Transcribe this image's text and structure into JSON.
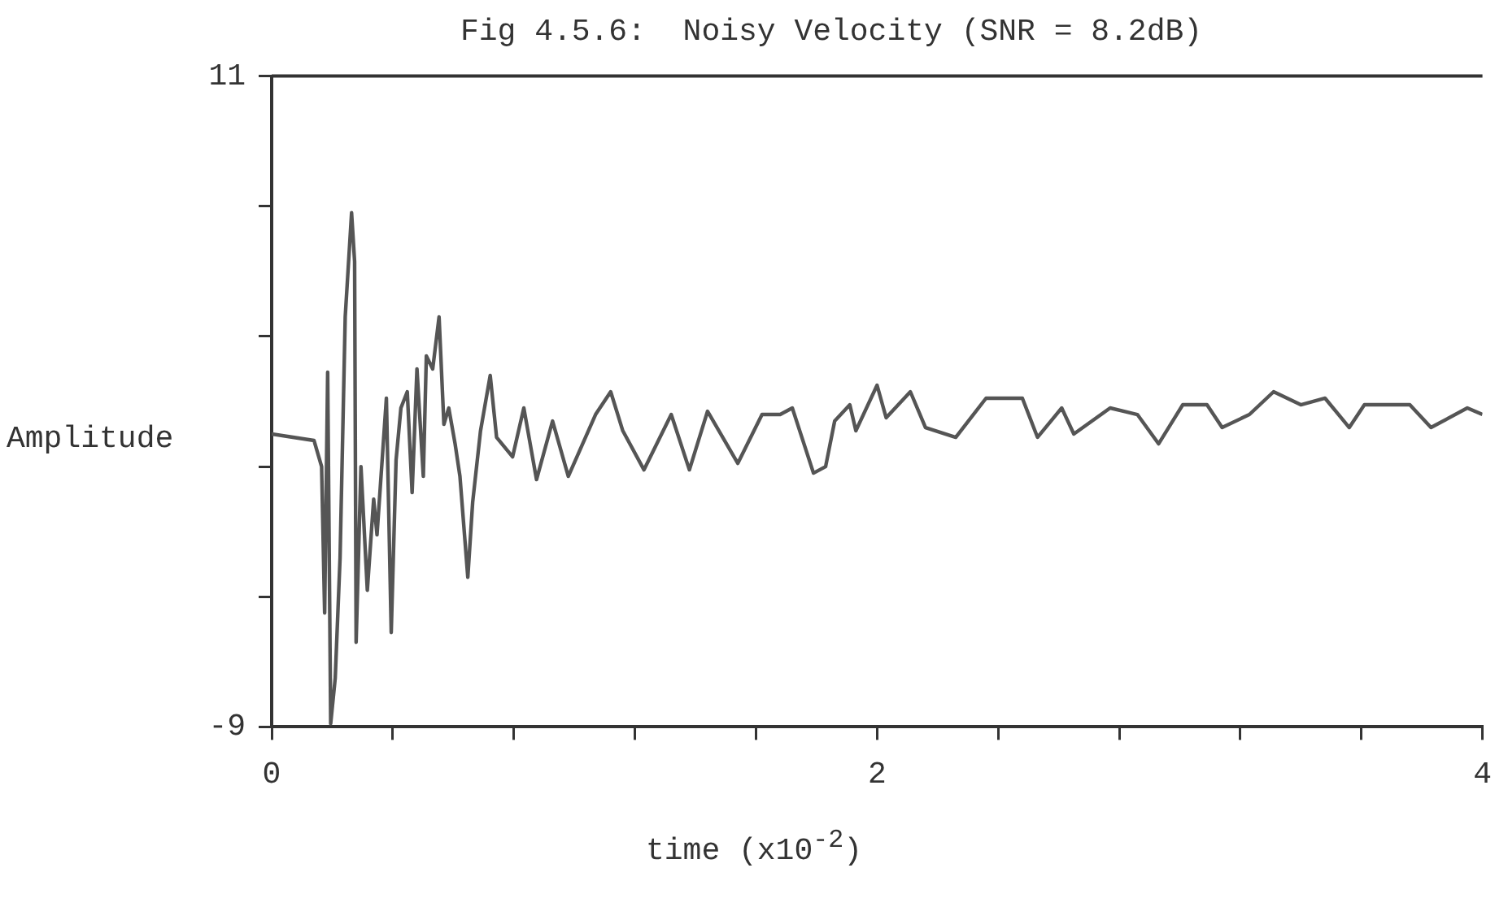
{
  "chart_data": {
    "type": "line",
    "title": "Fig 4.5.6:  Noisy Velocity (SNR = 8.2dB)",
    "xlabel": "time (x10$^{-2}$)",
    "ylabel": "Amplitude",
    "xlim": [
      0,
      4
    ],
    "ylim": [
      -9,
      11
    ],
    "xticks": [
      0,
      {
        "value": 0.4,
        "label": null
      },
      {
        "value": 0.8,
        "label": null
      },
      {
        "value": 1.2,
        "label": null
      },
      {
        "value": 1.6,
        "label": null
      },
      2,
      {
        "value": 2.4,
        "label": null
      },
      {
        "value": 2.8,
        "label": null
      },
      {
        "value": 3.2,
        "label": null
      },
      {
        "value": 3.6,
        "label": null
      },
      4
    ],
    "yticks": [
      -9,
      {
        "value": -5,
        "label": null
      },
      {
        "value": -1,
        "label": null
      },
      {
        "value": 3,
        "label": null
      },
      {
        "value": 7,
        "label": null
      },
      11
    ],
    "grid": false,
    "legend": false,
    "marker": "none",
    "line_style": "solid",
    "series": [
      {
        "color": "#555555",
        "x": [
          0,
          0.07,
          0.14,
          0.165,
          0.175,
          0.185,
          0.195,
          0.21,
          0.226,
          0.243,
          0.264,
          0.274,
          0.279,
          0.295,
          0.316,
          0.337,
          0.348,
          0.379,
          0.395,
          0.411,
          0.427,
          0.448,
          0.464,
          0.48,
          0.501,
          0.511,
          0.532,
          0.553,
          0.569,
          0.585,
          0.606,
          0.622,
          0.648,
          0.664,
          0.69,
          0.722,
          0.743,
          0.796,
          0.833,
          0.875,
          0.928,
          0.98,
          1.07,
          1.12,
          1.16,
          1.23,
          1.32,
          1.38,
          1.44,
          1.54,
          1.62,
          1.68,
          1.72,
          1.79,
          1.83,
          1.86,
          1.91,
          1.93,
          2.0,
          2.03,
          2.11,
          2.16,
          2.26,
          2.36,
          2.48,
          2.53,
          2.61,
          2.65,
          2.77,
          2.86,
          2.93,
          3.01,
          3.09,
          3.14,
          3.23,
          3.31,
          3.4,
          3.48,
          3.56,
          3.61,
          3.76,
          3.83,
          3.95,
          4.0
        ],
        "values": [
          0.0,
          -0.1,
          -0.2,
          -1.0,
          -5.5,
          1.9,
          -8.9,
          -7.5,
          -3.8,
          3.6,
          6.8,
          5.3,
          -6.4,
          -1.0,
          -4.8,
          -2.0,
          -3.1,
          1.1,
          -6.1,
          -0.8,
          0.8,
          1.3,
          -1.8,
          2.0,
          -1.3,
          2.4,
          2.0,
          3.6,
          0.3,
          0.8,
          -0.3,
          -1.3,
          -4.4,
          -2.1,
          0.1,
          1.8,
          -0.1,
          -0.7,
          0.8,
          -1.4,
          0.4,
          -1.3,
          0.6,
          1.3,
          0.1,
          -1.1,
          0.6,
          -1.1,
          0.7,
          -0.9,
          0.6,
          0.6,
          0.8,
          -1.2,
          -1.0,
          0.4,
          0.9,
          0.1,
          1.5,
          0.5,
          1.3,
          0.2,
          -0.1,
          1.1,
          1.1,
          -0.1,
          0.8,
          0.0,
          0.8,
          0.6,
          -0.3,
          0.9,
          0.9,
          0.2,
          0.6,
          1.3,
          0.9,
          1.1,
          0.2,
          0.9,
          0.9,
          0.2,
          0.8,
          0.6
        ]
      }
    ]
  }
}
